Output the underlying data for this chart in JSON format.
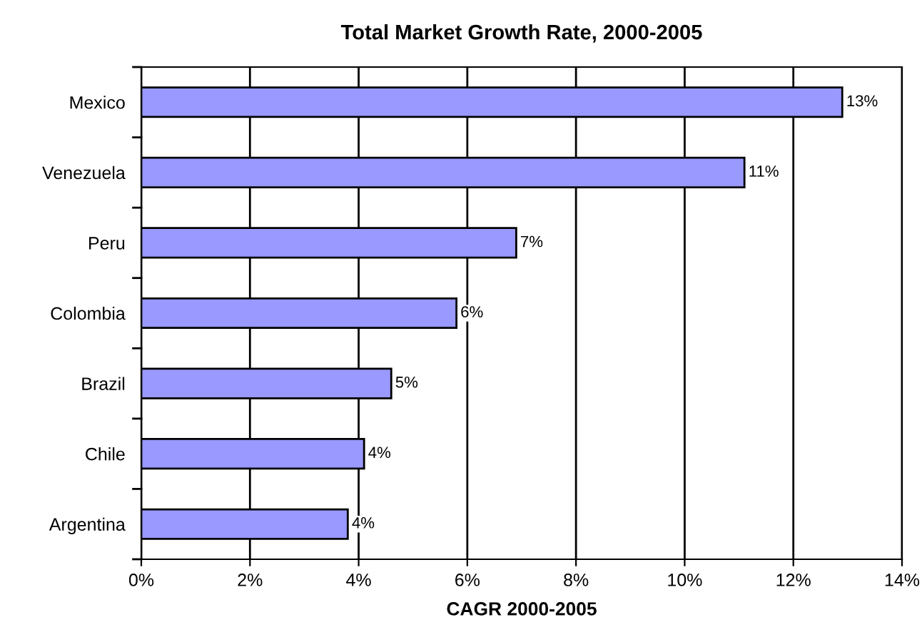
{
  "chart_data": {
    "type": "bar",
    "orientation": "horizontal",
    "title": "Total Market Growth Rate, 2000-2005",
    "xlabel": "CAGR 2000-2005",
    "categories": [
      "Mexico",
      "Venezuela",
      "Peru",
      "Colombia",
      "Brazil",
      "Chile",
      "Argentina"
    ],
    "values": [
      12.9,
      11.1,
      6.9,
      5.8,
      4.6,
      4.1,
      3.8
    ],
    "value_labels": [
      "13%",
      "11%",
      "7%",
      "6%",
      "5%",
      "4%",
      "4%"
    ],
    "color": "#9999ff",
    "xlim": [
      0,
      14
    ],
    "xticks": [
      {
        "value": 0,
        "label": "0%"
      },
      {
        "value": 2,
        "label": "2%"
      },
      {
        "value": 4,
        "label": "4%"
      },
      {
        "value": 6,
        "label": "6%"
      },
      {
        "value": 8,
        "label": "8%"
      },
      {
        "value": 10,
        "label": "10%"
      },
      {
        "value": 12,
        "label": "12%"
      },
      {
        "value": 14,
        "label": "14%"
      }
    ],
    "grid": "x",
    "legend": false
  }
}
